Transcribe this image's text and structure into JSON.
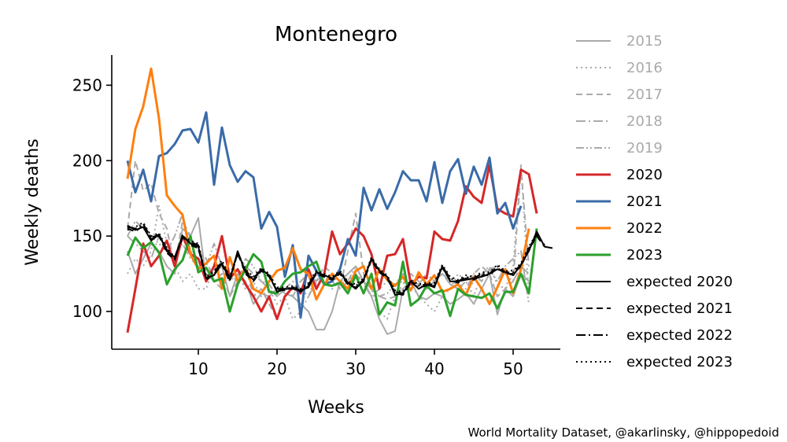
{
  "chart_data": {
    "type": "line",
    "title": "Montenegro",
    "xlabel": "Weeks",
    "ylabel": "Weekly deaths",
    "xlim": [
      -1,
      56
    ],
    "ylim": [
      75,
      270
    ],
    "xticks": [
      10,
      20,
      30,
      40,
      50
    ],
    "yticks": [
      100,
      150,
      200,
      250
    ],
    "grid": false,
    "legend_position": "right",
    "credit": "World Mortality Dataset, @akarlinsky, @hippopedoid",
    "series": [
      {
        "name": "2015",
        "color": "#aaaaaa",
        "dash": "solid",
        "width": 2,
        "values": [
          140,
          125,
          135,
          145,
          140,
          130,
          125,
          155,
          150,
          162,
          120,
          125,
          130,
          110,
          125,
          120,
          105,
          112,
          110,
          115,
          112,
          110,
          105,
          100,
          88,
          88,
          100,
          120,
          125,
          130,
          120,
          110,
          95,
          85,
          87,
          115,
          120,
          110,
          108,
          112,
          110,
          105,
          108,
          112,
          105,
          115,
          125,
          98,
          115,
          110,
          125,
          120
        ]
      },
      {
        "name": "2016",
        "color": "#aaaaaa",
        "dash": "dot",
        "width": 2,
        "values": [
          125,
          135,
          130,
          140,
          170,
          145,
          130,
          120,
          125,
          115,
          115,
          130,
          125,
          120,
          125,
          115,
          120,
          110,
          115,
          105,
          110,
          95,
          100,
          110,
          125,
          120,
          115,
          120,
          118,
          125,
          120,
          115,
          100,
          95,
          110,
          115,
          118,
          110,
          105,
          100,
          110,
          115,
          125,
          120,
          110,
          125,
          130,
          118,
          115,
          130,
          198,
          110
        ]
      },
      {
        "name": "2017",
        "color": "#aaaaaa",
        "dash": "dash",
        "width": 2,
        "values": [
          155,
          200,
          180,
          185,
          165,
          155,
          130,
          160,
          150,
          140,
          135,
          120,
          125,
          110,
          120,
          130,
          110,
          115,
          105,
          95,
          110,
          115,
          120,
          125,
          120,
          130,
          125,
          115,
          140,
          165,
          125,
          115,
          110,
          108,
          110,
          118,
          125,
          120,
          115,
          120,
          125,
          118,
          115,
          120,
          125,
          130,
          125,
          110,
          115,
          120,
          195,
          130
        ]
      },
      {
        "name": "2018",
        "color": "#aaaaaa",
        "dash": "dashdot",
        "width": 2,
        "values": [
          150,
          145,
          140,
          135,
          150,
          140,
          135,
          145,
          135,
          130,
          125,
          120,
          115,
          125,
          120,
          130,
          125,
          120,
          115,
          110,
          115,
          120,
          115,
          110,
          120,
          125,
          120,
          115,
          120,
          125,
          118,
          110,
          115,
          120,
          118,
          125,
          120,
          118,
          115,
          120,
          125,
          120,
          118,
          115,
          125,
          120,
          128,
          130,
          125,
          120,
          130,
          125
        ]
      },
      {
        "name": "2019",
        "color": "#aaaaaa",
        "dash": "dashdotdot",
        "width": 2,
        "values": [
          150,
          160,
          155,
          150,
          145,
          140,
          150,
          165,
          140,
          135,
          130,
          145,
          130,
          125,
          120,
          135,
          130,
          120,
          118,
          110,
          115,
          110,
          120,
          125,
          118,
          120,
          125,
          115,
          120,
          130,
          120,
          115,
          110,
          112,
          118,
          120,
          115,
          118,
          125,
          120,
          130,
          118,
          115,
          112,
          120,
          125,
          128,
          120,
          130,
          135,
          140,
          105
        ]
      },
      {
        "name": "2020",
        "color": "#d62728",
        "dash": "solid",
        "width": 3,
        "values": [
          86,
          115,
          145,
          130,
          137,
          147,
          130,
          150,
          138,
          135,
          120,
          130,
          150,
          122,
          128,
          118,
          110,
          100,
          110,
          95,
          110,
          116,
          112,
          128,
          115,
          125,
          153,
          138,
          145,
          155,
          150,
          138,
          115,
          137,
          138,
          148,
          118,
          123,
          122,
          153,
          148,
          147,
          160,
          183,
          176,
          172,
          197,
          168,
          165,
          163,
          194,
          191,
          165
        ]
      },
      {
        "name": "2021",
        "color": "#3a6ba8",
        "dash": "solid",
        "width": 3,
        "values": [
          200,
          179,
          194,
          173,
          203,
          205,
          211,
          220,
          221,
          212,
          232,
          184,
          222,
          197,
          186,
          193,
          189,
          155,
          166,
          156,
          123,
          144,
          96,
          137,
          127,
          118,
          120,
          128,
          148,
          137,
          182,
          167,
          181,
          168,
          179,
          193,
          187,
          187,
          173,
          199,
          172,
          193,
          201,
          178,
          196,
          184,
          202,
          165,
          172,
          155,
          170
        ]
      },
      {
        "name": "2022",
        "color": "#ff7f0e",
        "dash": "solid",
        "width": 3,
        "values": [
          188,
          221,
          236,
          261,
          228,
          177,
          170,
          164,
          138,
          128,
          132,
          137,
          115,
          136,
          120,
          129,
          115,
          112,
          120,
          127,
          129,
          142,
          128,
          125,
          108,
          118,
          125,
          120,
          115,
          127,
          130,
          115,
          128,
          121,
          117,
          123,
          114,
          126,
          118,
          124,
          113,
          115,
          118,
          111,
          123,
          115,
          105,
          116,
          128,
          112,
          128,
          155
        ]
      },
      {
        "name": "2023",
        "color": "#2ca02c",
        "dash": "solid",
        "width": 3,
        "values": [
          137,
          149,
          142,
          146,
          139,
          118,
          128,
          134,
          150,
          126,
          129,
          120,
          122,
          100,
          118,
          128,
          138,
          133,
          113,
          112,
          120,
          125,
          126,
          130,
          133,
          118,
          117,
          119,
          112,
          124,
          112,
          125,
          98,
          106,
          104,
          133,
          104,
          108,
          117,
          112,
          114,
          97,
          115,
          111,
          110,
          109,
          112,
          102,
          113,
          113,
          125,
          112,
          155
        ]
      },
      {
        "name": "expected 2020",
        "color": "#000000",
        "dash": "solid",
        "width": 2,
        "values": [
          157,
          154,
          156,
          147,
          151,
          140,
          136,
          150,
          145,
          143,
          122,
          124,
          132,
          121,
          140,
          126,
          121,
          128,
          124,
          113,
          115,
          115,
          114,
          116,
          126,
          124,
          122,
          126,
          119,
          115,
          121,
          135,
          127,
          123,
          111,
          112,
          120,
          115,
          118,
          116,
          130,
          120,
          120,
          121,
          122,
          123,
          125,
          128,
          126,
          124,
          131,
          140,
          153,
          143,
          142
        ]
      },
      {
        "name": "expected 2021",
        "color": "#000000",
        "dash": "dash",
        "width": 2,
        "values": [
          155,
          153,
          157,
          148,
          150,
          139,
          134,
          151,
          144,
          142,
          121,
          125,
          131,
          120,
          139,
          125,
          120,
          127,
          123,
          114,
          114,
          116,
          113,
          117,
          125,
          123,
          121,
          125,
          118,
          116,
          120,
          134,
          126,
          122,
          112,
          111,
          119,
          116,
          117,
          117,
          129,
          121,
          119,
          122,
          121,
          124,
          124,
          129,
          125,
          125,
          130,
          141,
          150,
          143
        ]
      },
      {
        "name": "expected 2022",
        "color": "#000000",
        "dash": "dashdot",
        "width": 2,
        "values": [
          156,
          155,
          158,
          149,
          151,
          141,
          135,
          149,
          146,
          144,
          122,
          126,
          133,
          122,
          138,
          127,
          122,
          128,
          124,
          115,
          115,
          116,
          114,
          118,
          126,
          124,
          122,
          126,
          119,
          117,
          121,
          135,
          127,
          123,
          113,
          112,
          120,
          117,
          118,
          118,
          130,
          122,
          120,
          123,
          122,
          125,
          125,
          130,
          126,
          126,
          131,
          142,
          151,
          144
        ]
      },
      {
        "name": "expected 2023",
        "color": "#000000",
        "dash": "dot",
        "width": 2,
        "values": [
          154,
          156,
          159,
          150,
          152,
          142,
          136,
          150,
          147,
          145,
          123,
          127,
          134,
          123,
          139,
          128,
          123,
          129,
          125,
          116,
          116,
          117,
          115,
          119,
          127,
          125,
          123,
          127,
          120,
          118,
          122,
          136,
          128,
          124,
          114,
          113,
          121,
          118,
          119,
          119,
          131,
          123,
          121,
          124,
          123,
          126,
          126,
          131,
          127,
          127,
          132,
          143,
          152
        ]
      }
    ],
    "legend": [
      {
        "label": "2015",
        "text_color": "#aaaaaa"
      },
      {
        "label": "2016",
        "text_color": "#aaaaaa"
      },
      {
        "label": "2017",
        "text_color": "#aaaaaa"
      },
      {
        "label": "2018",
        "text_color": "#aaaaaa"
      },
      {
        "label": "2019",
        "text_color": "#aaaaaa"
      },
      {
        "label": "2020",
        "text_color": "#000000"
      },
      {
        "label": "2021",
        "text_color": "#000000"
      },
      {
        "label": "2022",
        "text_color": "#000000"
      },
      {
        "label": "2023",
        "text_color": "#000000"
      },
      {
        "label": "expected 2020",
        "text_color": "#000000"
      },
      {
        "label": "expected 2021",
        "text_color": "#000000"
      },
      {
        "label": "expected 2022",
        "text_color": "#000000"
      },
      {
        "label": "expected 2023",
        "text_color": "#000000"
      }
    ]
  }
}
